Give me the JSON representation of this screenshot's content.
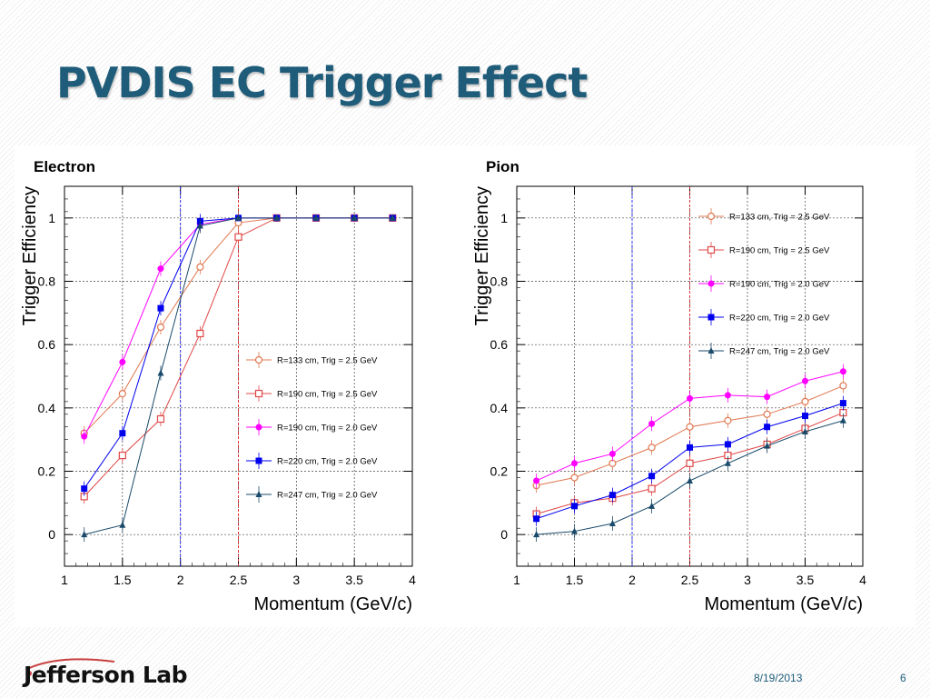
{
  "slide": {
    "title": "PVDIS EC Trigger Effect",
    "footer_logo": "Jefferson Lab",
    "date": "8/19/2013",
    "page_number": "6"
  },
  "chart_data": [
    {
      "type": "line",
      "title": "Electron",
      "xlabel": "Momentum (GeV/c)",
      "ylabel": "Trigger Efficiency",
      "xlim": [
        1,
        4
      ],
      "ylim": [
        -0.1,
        1.1
      ],
      "xticks": [
        "1",
        "1.5",
        "2",
        "2.5",
        "3",
        "3.5",
        "4"
      ],
      "yticks": [
        "0",
        "0.2",
        "0.4",
        "0.6",
        "0.8",
        "1"
      ],
      "grid": true,
      "legend_position": "bottom-right",
      "x": [
        1.17,
        1.5,
        1.83,
        2.17,
        2.5,
        2.83,
        3.17,
        3.5,
        3.83
      ],
      "series": [
        {
          "name": "R=133 cm, Trig = 2.5 GeV",
          "color": "#e07850",
          "marker": "open-circle",
          "values": [
            0.32,
            0.445,
            0.655,
            0.845,
            0.985,
            1.0,
            1.0,
            1.0,
            1.0
          ]
        },
        {
          "name": "R=190 cm, Trig = 2.5 GeV",
          "color": "#e04848",
          "marker": "open-square",
          "values": [
            0.12,
            0.25,
            0.365,
            0.635,
            0.94,
            1.0,
            1.0,
            1.0,
            1.0
          ]
        },
        {
          "name": "R=190 cm, Trig = 2.0 GeV",
          "color": "#ff00ff",
          "marker": "filled-circle",
          "values": [
            0.31,
            0.545,
            0.84,
            0.98,
            1.0,
            1.0,
            1.0,
            1.0,
            1.0
          ]
        },
        {
          "name": "R=220 cm, Trig = 2.0 GeV",
          "color": "#0000ee",
          "marker": "filled-square",
          "values": [
            0.145,
            0.32,
            0.715,
            0.99,
            1.0,
            1.0,
            1.0,
            1.0,
            1.0
          ]
        },
        {
          "name": "R=247 cm, Trig = 2.0 GeV",
          "color": "#1a4a6a",
          "marker": "filled-triangle",
          "values": [
            0.0,
            0.03,
            0.51,
            0.975,
            1.0,
            1.0,
            1.0,
            1.0,
            1.0
          ]
        }
      ],
      "cut_lines": [
        {
          "x": 2.0,
          "color": "#3030ff"
        },
        {
          "x": 2.5,
          "color": "#e03030"
        }
      ]
    },
    {
      "type": "line",
      "title": "Pion",
      "xlabel": "Momentum (GeV/c)",
      "ylabel": "Trigger Efficiency",
      "xlim": [
        1,
        4
      ],
      "ylim": [
        -0.1,
        1.1
      ],
      "xticks": [
        "1",
        "1.5",
        "2",
        "2.5",
        "3",
        "3.5",
        "4"
      ],
      "yticks": [
        "0",
        "0.2",
        "0.4",
        "0.6",
        "0.8",
        "1"
      ],
      "grid": true,
      "legend_position": "top-right",
      "x": [
        1.17,
        1.5,
        1.83,
        2.17,
        2.5,
        2.83,
        3.17,
        3.5,
        3.83
      ],
      "series": [
        {
          "name": "R=133 cm, Trig = 2.5 GeV",
          "color": "#e07850",
          "marker": "open-circle",
          "values": [
            0.155,
            0.18,
            0.225,
            0.275,
            0.34,
            0.36,
            0.38,
            0.42,
            0.47
          ]
        },
        {
          "name": "R=190 cm, Trig = 2.5 GeV",
          "color": "#e04848",
          "marker": "open-square",
          "values": [
            0.065,
            0.1,
            0.115,
            0.145,
            0.225,
            0.25,
            0.285,
            0.335,
            0.385
          ]
        },
        {
          "name": "R=190 cm, Trig = 2.0 GeV",
          "color": "#ff00ff",
          "marker": "filled-circle",
          "values": [
            0.17,
            0.225,
            0.255,
            0.35,
            0.43,
            0.44,
            0.435,
            0.485,
            0.515
          ]
        },
        {
          "name": "R=220 cm, Trig = 2.0 GeV",
          "color": "#0000ee",
          "marker": "filled-square",
          "values": [
            0.05,
            0.09,
            0.125,
            0.185,
            0.275,
            0.285,
            0.34,
            0.375,
            0.415
          ]
        },
        {
          "name": "R=247 cm, Trig = 2.0 GeV",
          "color": "#1a4a6a",
          "marker": "filled-triangle",
          "values": [
            0.0,
            0.01,
            0.035,
            0.09,
            0.17,
            0.225,
            0.28,
            0.325,
            0.36
          ]
        }
      ],
      "cut_lines": [
        {
          "x": 2.0,
          "color": "#3030ff"
        },
        {
          "x": 2.5,
          "color": "#e03030"
        }
      ]
    }
  ]
}
